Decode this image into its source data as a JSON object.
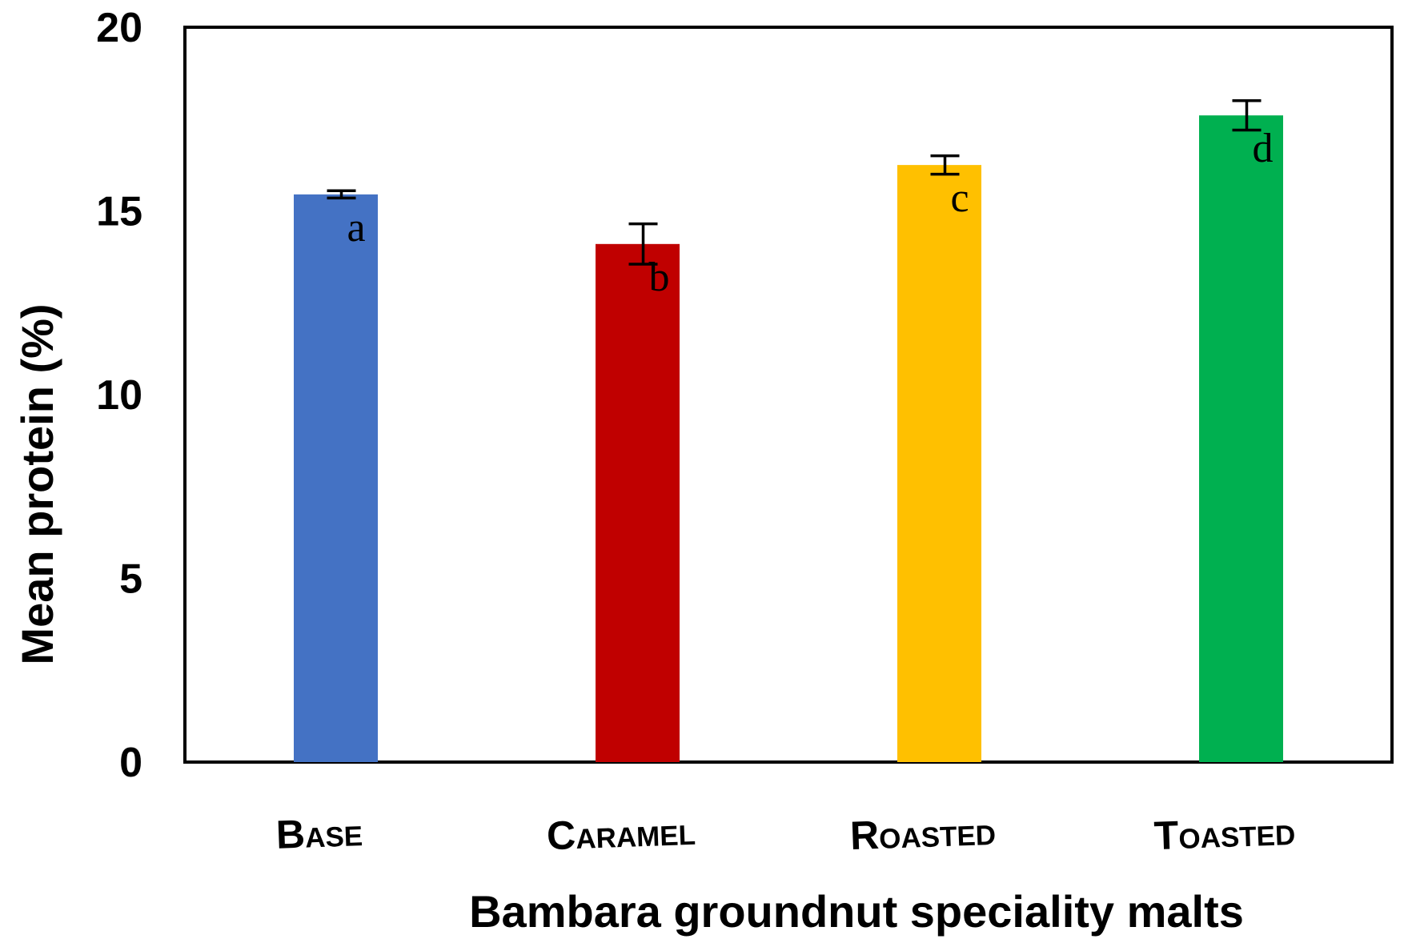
{
  "chart_data": {
    "type": "bar",
    "title": "",
    "xlabel": "Bambara groundnut speciality malts",
    "ylabel": "Mean protein (%)",
    "ylim": [
      0,
      20
    ],
    "yticks": [
      0,
      5,
      10,
      15,
      20
    ],
    "grid": false,
    "categories": [
      "Base",
      "Caramel",
      "Roasted",
      "Toasted"
    ],
    "values": [
      15.45,
      14.1,
      16.25,
      17.6
    ],
    "errors": [
      0.1,
      0.55,
      0.25,
      0.4
    ],
    "significance_letters": [
      "a",
      "b",
      "c",
      "d"
    ],
    "colors": [
      "#4472C4",
      "#C00000",
      "#FFC000",
      "#00B050"
    ]
  }
}
